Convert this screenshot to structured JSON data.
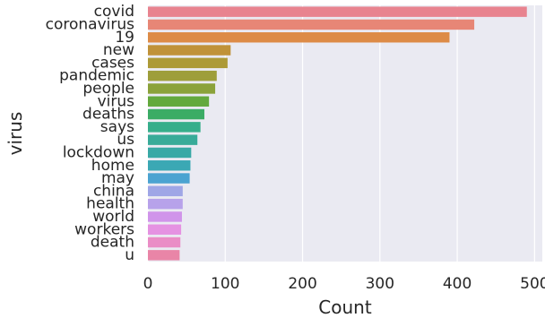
{
  "chart_data": {
    "type": "bar",
    "orientation": "horizontal",
    "categories": [
      "covid",
      "coronavirus",
      "19",
      "new",
      "cases",
      "pandemic",
      "people",
      "virus",
      "deaths",
      "says",
      "us",
      "lockdown",
      "home",
      "may",
      "china",
      "health",
      "world",
      "workers",
      "death",
      "u"
    ],
    "values": [
      490,
      422,
      390,
      107,
      103,
      89,
      87,
      79,
      73,
      68,
      64,
      56,
      55,
      54,
      45,
      45,
      44,
      43,
      42,
      41
    ],
    "colors": [
      "#e8838f",
      "#e78676",
      "#dd8b47",
      "#c09239",
      "#ad9a37",
      "#9e9e3a",
      "#8ba23a",
      "#63a93d",
      "#3bac65",
      "#36ae8b",
      "#38ab99",
      "#39a9a6",
      "#3ba8b4",
      "#4ba3d1",
      "#9fa6e6",
      "#b7a2ea",
      "#d094ea",
      "#e592e2",
      "#ea8dc6",
      "#e985a7"
    ],
    "xlabel": "Count",
    "ylabel": "virus",
    "xlim": [
      0,
      510
    ],
    "xticks": [
      0,
      100,
      200,
      300,
      400,
      500
    ],
    "grid": true,
    "background": "#eaeaf2",
    "grid_color": "#ffffff"
  }
}
